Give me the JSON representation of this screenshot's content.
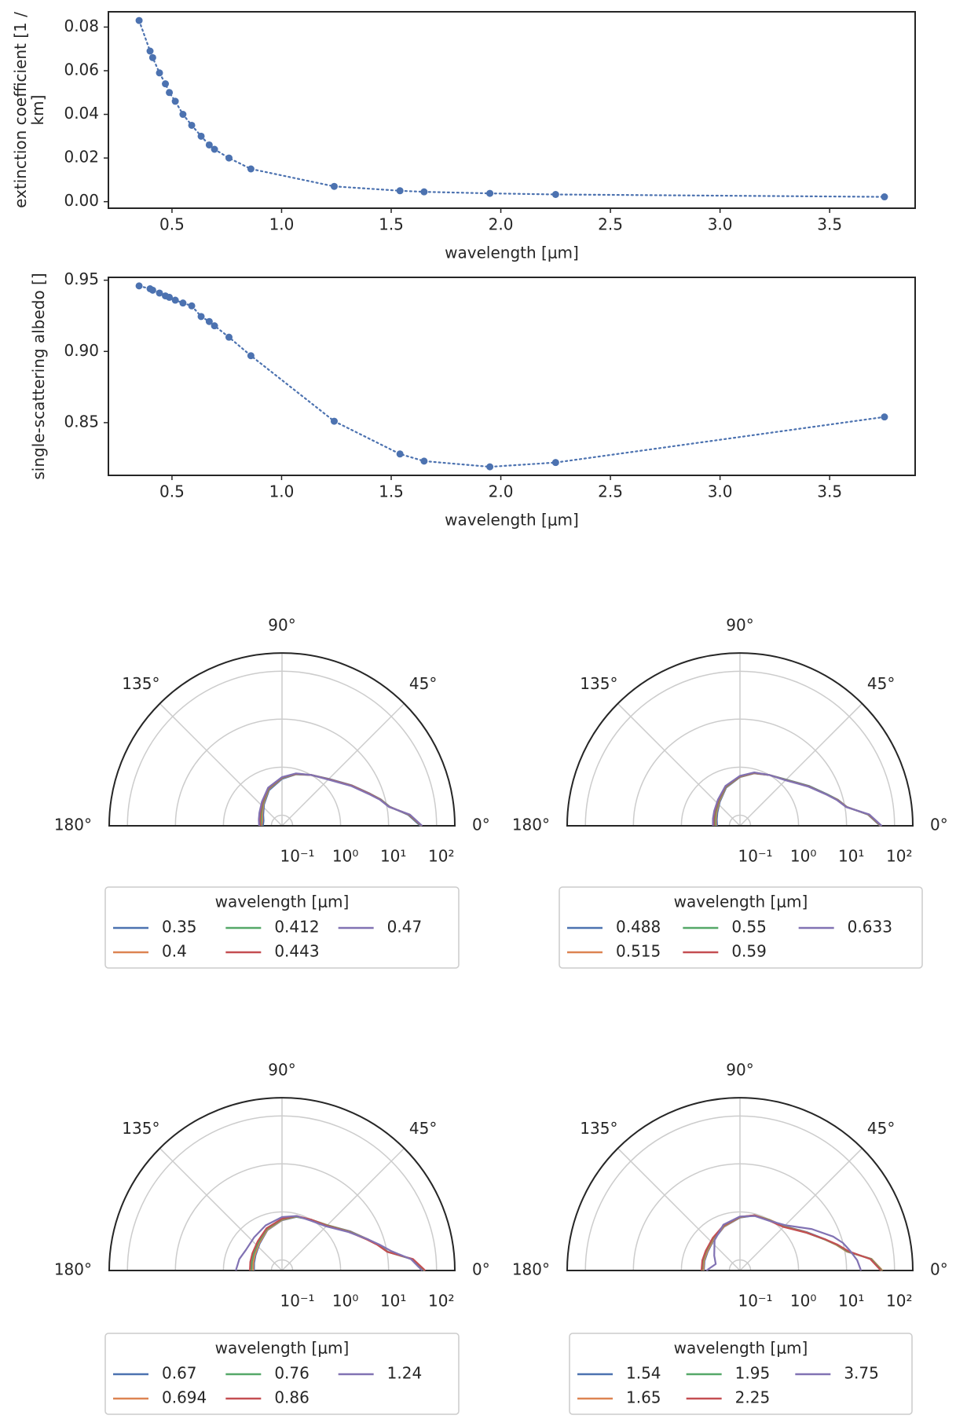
{
  "chart_data": [
    {
      "type": "line",
      "x": [
        0.35,
        0.4,
        0.412,
        0.443,
        0.47,
        0.488,
        0.515,
        0.55,
        0.59,
        0.633,
        0.67,
        0.694,
        0.76,
        0.86,
        1.24,
        1.54,
        1.65,
        1.95,
        2.25,
        3.75
      ],
      "values": [
        0.083,
        0.069,
        0.066,
        0.059,
        0.054,
        0.05,
        0.046,
        0.04,
        0.035,
        0.03,
        0.026,
        0.024,
        0.02,
        0.015,
        0.007,
        0.005,
        0.0045,
        0.0038,
        0.0033,
        0.0022
      ],
      "color": "#4c72b0",
      "linestyle": "dotted",
      "marker": true,
      "xlabel": "wavelength [μm]",
      "ylabel": "extinction coefficient [1 / km]",
      "xlim": [
        0.21,
        3.89
      ],
      "xticks": [
        0.5,
        {
          "value": 1.0,
          "label": "1.0"
        },
        1.5,
        {
          "value": 2.0,
          "label": "2.0"
        },
        2.5,
        {
          "value": 3.0,
          "label": "3.0"
        },
        3.5
      ],
      "ylim": [
        -0.003,
        0.087
      ],
      "yticks": [
        {
          "value": 0,
          "label": "0.00"
        },
        {
          "value": 0.02,
          "label": "0.02"
        },
        {
          "value": 0.04,
          "label": "0.04"
        },
        {
          "value": 0.06,
          "label": "0.06"
        },
        {
          "value": 0.08,
          "label": "0.08"
        }
      ]
    },
    {
      "type": "line",
      "x": [
        0.35,
        0.4,
        0.412,
        0.443,
        0.47,
        0.488,
        0.515,
        0.55,
        0.59,
        0.633,
        0.67,
        0.694,
        0.76,
        0.86,
        1.24,
        1.54,
        1.65,
        1.95,
        2.25,
        3.75
      ],
      "values": [
        0.946,
        0.944,
        0.943,
        0.941,
        0.939,
        0.938,
        0.936,
        0.934,
        0.932,
        0.9245,
        0.921,
        0.918,
        0.91,
        0.897,
        0.851,
        0.828,
        0.823,
        0.819,
        0.822,
        0.854
      ],
      "color": "#4c72b0",
      "linestyle": "dotted",
      "marker": true,
      "xlabel": "wavelength [μm]",
      "ylabel": "single-scattering albedo []",
      "xlim": [
        0.21,
        3.89
      ],
      "xticks": [
        0.5,
        {
          "value": 1.0,
          "label": "1.0"
        },
        1.5,
        {
          "value": 2.0,
          "label": "2.0"
        },
        2.5,
        {
          "value": 3.0,
          "label": "3.0"
        },
        3.5
      ],
      "ylim": [
        0.813,
        0.952
      ],
      "yticks": [
        0.85,
        {
          "value": 0.9,
          "label": "0.90"
        },
        0.95
      ]
    },
    {
      "type": "polar",
      "rscale": "log",
      "rlim": [
        0.06,
        240
      ],
      "thetalim": [
        0,
        180
      ],
      "rticks": [
        {
          "value": 0.1,
          "label": "10⁻¹"
        },
        {
          "value": 1,
          "label": "10⁰"
        },
        {
          "value": 10,
          "label": "10¹"
        },
        {
          "value": 100,
          "label": "10²"
        }
      ],
      "thetaticks": [
        {
          "value": 0,
          "label": "0°"
        },
        {
          "value": 45,
          "label": "45°"
        },
        {
          "value": 90,
          "label": "90°"
        },
        {
          "value": 135,
          "label": "135°"
        },
        {
          "value": 180,
          "label": "180°"
        }
      ],
      "theta": [
        0,
        5,
        10,
        15,
        20,
        30,
        45,
        60,
        75,
        90,
        110,
        130,
        150,
        165,
        180
      ],
      "legend_title": "wavelength [μm]",
      "legend_loc": "lower center",
      "series": [
        {
          "name": "0.35",
          "color": "#4c72b0",
          "values": [
            46,
            26,
            11.5,
            8.1,
            5.4,
            2.9,
            1.45,
            1.0,
            0.77,
            0.57,
            0.37,
            0.23,
            0.17,
            0.15,
            0.15
          ]
        },
        {
          "name": "0.4",
          "color": "#dd8452",
          "values": [
            48,
            27,
            11.3,
            8.0,
            5.3,
            2.85,
            1.42,
            1.0,
            0.78,
            0.59,
            0.39,
            0.24,
            0.18,
            0.16,
            0.16
          ]
        },
        {
          "name": "0.412",
          "color": "#55a868",
          "values": [
            48,
            27.5,
            11.2,
            7.9,
            5.2,
            2.8,
            1.4,
            1.0,
            0.79,
            0.6,
            0.4,
            0.25,
            0.19,
            0.17,
            0.165
          ]
        },
        {
          "name": "0.443",
          "color": "#c44e52",
          "values": [
            49,
            28,
            11.1,
            7.8,
            5.2,
            2.8,
            1.4,
            1.0,
            0.8,
            0.61,
            0.41,
            0.26,
            0.2,
            0.18,
            0.17
          ]
        },
        {
          "name": "0.47",
          "color": "#8172b3",
          "values": [
            50,
            28.5,
            11,
            7.7,
            5.1,
            2.75,
            1.38,
            1.0,
            0.81,
            0.62,
            0.42,
            0.27,
            0.21,
            0.19,
            0.18
          ]
        }
      ]
    },
    {
      "type": "polar",
      "rscale": "log",
      "rlim": [
        0.06,
        240
      ],
      "thetalim": [
        0,
        180
      ],
      "rticks": [
        {
          "value": 0.1,
          "label": "10⁻¹"
        },
        {
          "value": 1,
          "label": "10⁰"
        },
        {
          "value": 10,
          "label": "10¹"
        },
        {
          "value": 100,
          "label": "10²"
        }
      ],
      "thetaticks": [
        {
          "value": 0,
          "label": "0°"
        },
        {
          "value": 45,
          "label": "45°"
        },
        {
          "value": 90,
          "label": "90°"
        },
        {
          "value": 135,
          "label": "135°"
        },
        {
          "value": 180,
          "label": "180°"
        }
      ],
      "theta": [
        0,
        5,
        10,
        15,
        20,
        30,
        45,
        60,
        75,
        90,
        110,
        130,
        150,
        165,
        180
      ],
      "legend_title": "wavelength [μm]",
      "legend_loc": "lower center",
      "series": [
        {
          "name": "0.488",
          "color": "#4c72b0",
          "values": [
            50,
            28.5,
            11,
            7.7,
            5.1,
            2.75,
            1.38,
            1.0,
            0.81,
            0.62,
            0.42,
            0.27,
            0.21,
            0.19,
            0.18
          ]
        },
        {
          "name": "0.515",
          "color": "#dd8452",
          "values": [
            51,
            29,
            10.9,
            7.6,
            5.0,
            2.7,
            1.36,
            1.0,
            0.82,
            0.63,
            0.43,
            0.28,
            0.22,
            0.2,
            0.19
          ]
        },
        {
          "name": "0.55",
          "color": "#55a868",
          "values": [
            52,
            29.5,
            10.8,
            7.5,
            5.0,
            2.7,
            1.35,
            1.0,
            0.83,
            0.64,
            0.44,
            0.29,
            0.23,
            0.21,
            0.2
          ]
        },
        {
          "name": "0.59",
          "color": "#c44e52",
          "values": [
            53,
            30,
            10.7,
            7.4,
            4.9,
            2.65,
            1.33,
            1.0,
            0.84,
            0.65,
            0.45,
            0.3,
            0.24,
            0.22,
            0.21
          ]
        },
        {
          "name": "0.633",
          "color": "#8172b3",
          "values": [
            54,
            30.5,
            10.6,
            7.3,
            4.9,
            2.6,
            1.32,
            1.0,
            0.85,
            0.66,
            0.46,
            0.31,
            0.25,
            0.23,
            0.22
          ]
        }
      ]
    },
    {
      "type": "polar",
      "rscale": "log",
      "rlim": [
        0.06,
        240
      ],
      "thetalim": [
        0,
        180
      ],
      "rticks": [
        {
          "value": 0.1,
          "label": "10⁻¹"
        },
        {
          "value": 1,
          "label": "10⁰"
        },
        {
          "value": 10,
          "label": "10¹"
        },
        {
          "value": 100,
          "label": "10²"
        }
      ],
      "thetaticks": [
        {
          "value": 0,
          "label": "0°"
        },
        {
          "value": 45,
          "label": "45°"
        },
        {
          "value": 90,
          "label": "90°"
        },
        {
          "value": 135,
          "label": "135°"
        },
        {
          "value": 180,
          "label": "180°"
        }
      ],
      "theta": [
        0,
        5,
        10,
        15,
        20,
        30,
        45,
        60,
        75,
        90,
        110,
        130,
        150,
        165,
        180
      ],
      "legend_title": "wavelength [μm]",
      "legend_loc": "lower center",
      "series": [
        {
          "name": "0.67",
          "color": "#4c72b0",
          "values": [
            55,
            31,
            10.5,
            7.2,
            4.8,
            2.6,
            1.3,
            1.0,
            0.86,
            0.67,
            0.47,
            0.32,
            0.26,
            0.24,
            0.23
          ]
        },
        {
          "name": "0.694",
          "color": "#dd8452",
          "values": [
            56,
            31.5,
            10.4,
            7.1,
            4.8,
            2.55,
            1.3,
            1.0,
            0.87,
            0.68,
            0.48,
            0.33,
            0.27,
            0.25,
            0.24
          ]
        },
        {
          "name": "0.76",
          "color": "#55a868",
          "values": [
            57,
            32,
            10.3,
            7.0,
            4.7,
            2.5,
            1.28,
            1.0,
            0.88,
            0.7,
            0.5,
            0.35,
            0.29,
            0.27,
            0.26
          ]
        },
        {
          "name": "0.86",
          "color": "#c44e52",
          "values": [
            58,
            33,
            10.2,
            6.9,
            4.6,
            2.45,
            1.25,
            1.0,
            0.9,
            0.72,
            0.52,
            0.37,
            0.31,
            0.29,
            0.28
          ]
        },
        {
          "name": "1.24",
          "color": "#8172b3",
          "values": [
            50,
            30,
            12.5,
            7.5,
            4.8,
            2.4,
            1.2,
            0.95,
            0.9,
            0.78,
            0.6,
            0.48,
            0.44,
            0.5,
            0.55
          ]
        }
      ]
    },
    {
      "type": "polar",
      "rscale": "log",
      "rlim": [
        0.06,
        240
      ],
      "thetalim": [
        0,
        180
      ],
      "rticks": [
        {
          "value": 0.1,
          "label": "10⁻¹"
        },
        {
          "value": 1,
          "label": "10⁰"
        },
        {
          "value": 10,
          "label": "10¹"
        },
        {
          "value": 100,
          "label": "10²"
        }
      ],
      "thetaticks": [
        {
          "value": 0,
          "label": "0°"
        },
        {
          "value": 45,
          "label": "45°"
        },
        {
          "value": 90,
          "label": "90°"
        },
        {
          "value": 135,
          "label": "135°"
        },
        {
          "value": 180,
          "label": "180°"
        }
      ],
      "theta": [
        0,
        5,
        10,
        15,
        20,
        30,
        45,
        60,
        75,
        90,
        110,
        130,
        150,
        165,
        180
      ],
      "legend_title": "wavelength [μm]",
      "legend_loc": "lower center",
      "series": [
        {
          "name": "1.54",
          "color": "#4c72b0",
          "values": [
            55,
            34,
            11,
            7.2,
            4.7,
            2.4,
            1.22,
            1.0,
            0.92,
            0.76,
            0.56,
            0.42,
            0.36,
            0.35,
            0.34
          ]
        },
        {
          "name": "1.65",
          "color": "#dd8452",
          "values": [
            56,
            34,
            11,
            7.1,
            4.6,
            2.35,
            1.2,
            1.0,
            0.93,
            0.77,
            0.57,
            0.43,
            0.37,
            0.36,
            0.35
          ]
        },
        {
          "name": "1.95",
          "color": "#55a868",
          "values": [
            54,
            33,
            11.5,
            7.3,
            4.6,
            2.3,
            1.18,
            0.98,
            0.93,
            0.78,
            0.59,
            0.45,
            0.39,
            0.38,
            0.37
          ]
        },
        {
          "name": "2.25",
          "color": "#c44e52",
          "values": [
            52,
            32,
            12,
            7.5,
            4.7,
            2.3,
            1.15,
            0.96,
            0.93,
            0.79,
            0.6,
            0.46,
            0.4,
            0.39,
            0.38
          ]
        },
        {
          "name": "3.75",
          "color": "#8172b3",
          "values": [
            20,
            17,
            13,
            10,
            7,
            3.2,
            1.3,
            0.95,
            0.9,
            0.8,
            0.62,
            0.4,
            0.25,
            0.2,
            0.3
          ]
        }
      ]
    }
  ]
}
